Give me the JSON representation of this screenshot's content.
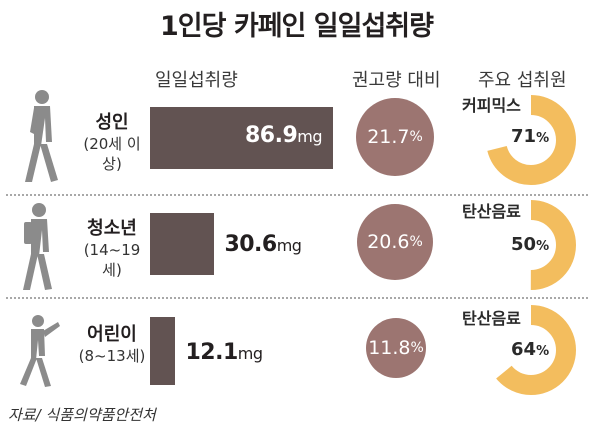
{
  "title": "1인당 카페인 일일섭취량",
  "column_headers": {
    "intake": "일일섭취량",
    "ratio": "권고량 대비",
    "source": "주요 섭취원"
  },
  "colors": {
    "bar": "#625352",
    "bubble": "#9c7571",
    "donut_fill": "#f3bd5e",
    "donut_track": "#ffffff",
    "figure": "#8b8b8b"
  },
  "chart_data": {
    "type": "bar",
    "categories": [
      "성인",
      "청소년",
      "어린이"
    ],
    "age_ranges": [
      "(20세 이상)",
      "(14~19세)",
      "(8~13세)"
    ],
    "daily_intake": {
      "unit": "mg",
      "values": [
        86.9,
        30.6,
        12.1
      ]
    },
    "percent_of_recommended": {
      "unit": "%",
      "values": [
        21.7,
        20.6,
        11.8
      ]
    },
    "main_source": {
      "names": [
        "커피믹스",
        "탄산음료",
        "탄산음료"
      ],
      "percents": [
        71,
        50,
        64
      ]
    }
  },
  "rows": [
    {
      "name": "성인",
      "age": "(20세 이상)",
      "intake": "86.9",
      "unit": "mg",
      "ratio": "21.7",
      "source": "커피믹스",
      "share": "71",
      "pct_sign": "%"
    },
    {
      "name": "청소년",
      "age": "(14~19세)",
      "intake": "30.6",
      "unit": "mg",
      "ratio": "20.6",
      "source": "탄산음료",
      "share": "50",
      "pct_sign": "%"
    },
    {
      "name": "어린이",
      "age": "(8~13세)",
      "intake": "12.1",
      "unit": "mg",
      "ratio": "11.8",
      "source": "탄산음료",
      "share": "64",
      "pct_sign": "%"
    }
  ],
  "credit": "자료/ 식품의약품안전처"
}
